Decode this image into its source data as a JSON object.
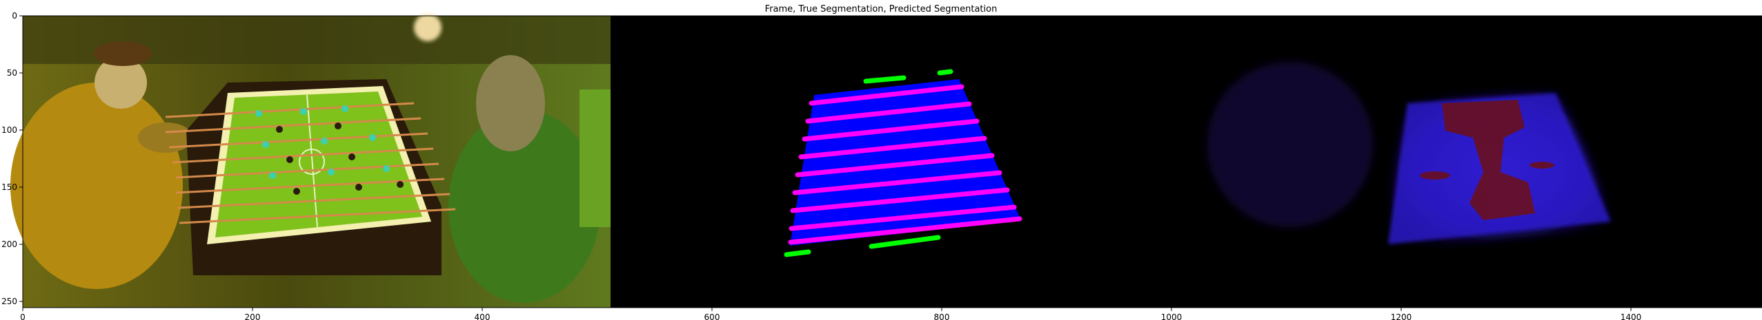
{
  "figure": {
    "title": "Frame, True Segmentation, Predicted Segmentation",
    "x_ticks": [
      "0",
      "200",
      "400",
      "600",
      "800",
      "1000",
      "1200",
      "1400"
    ],
    "y_ticks": [
      "0",
      "50",
      "100",
      "150",
      "200",
      "250"
    ]
  },
  "colors": {
    "table_mask": "#0000ff",
    "rod_mask": "#ff00ff",
    "goal_mask": "#00ff00",
    "background": "#000000",
    "frame_tint": "#6f7a1c"
  }
}
